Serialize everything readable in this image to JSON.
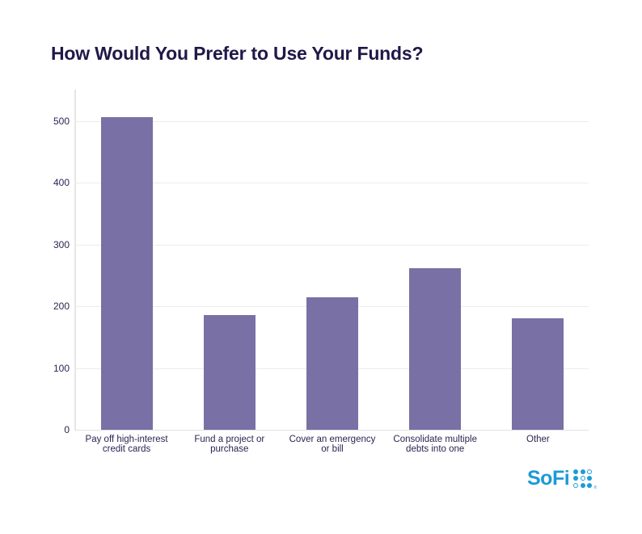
{
  "title": "How Would You Prefer to Use Your Funds?",
  "brand": {
    "name": "SoFi",
    "color": "#1b9bd7",
    "mark_dots": [
      "f",
      "f",
      "o",
      "f",
      "o",
      "f",
      "o",
      "f",
      "f"
    ],
    "registered": "®"
  },
  "colors": {
    "bar": "#7970a5",
    "title": "#1f1848",
    "text": "#2a2552",
    "grid": "#ececec"
  },
  "axis": {
    "y_ticks": [
      "0",
      "100",
      "200",
      "300",
      "400",
      "500"
    ]
  },
  "chart_data": {
    "type": "bar",
    "title": "How Would You Prefer to Use Your Funds?",
    "xlabel": "",
    "ylabel": "",
    "categories": [
      "Pay off high-interest credit cards",
      "Fund a project or purchase",
      "Cover an emergency or bill",
      "Consolidate multiple debts into one",
      "Other"
    ],
    "category_lines": [
      [
        "Pay off high-interest",
        "credit cards"
      ],
      [
        "Fund a project or",
        "purchase"
      ],
      [
        "Cover an emergency",
        "or bill"
      ],
      [
        "Consolidate multiple",
        "debts into one"
      ],
      [
        "Other",
        ""
      ]
    ],
    "values": [
      507,
      186,
      215,
      262,
      180
    ],
    "ylim": [
      0,
      550
    ],
    "yticks": [
      0,
      100,
      200,
      300,
      400,
      500
    ],
    "grid": true,
    "legend": null
  }
}
